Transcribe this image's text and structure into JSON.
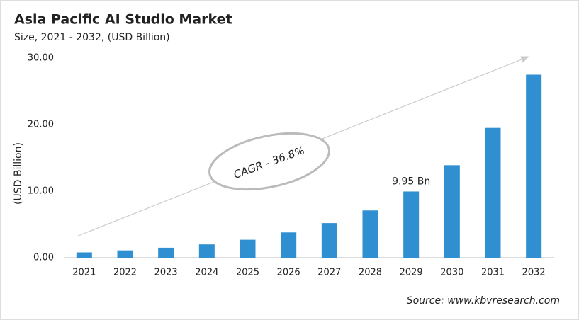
{
  "chart_data": {
    "type": "bar",
    "title": "Asia Pacific AI Studio Market",
    "subtitle": "Size, 2021 - 2032, (USD Billion)",
    "y_label": "(USD Billion)",
    "categories": [
      "2021",
      "2022",
      "2023",
      "2024",
      "2025",
      "2026",
      "2027",
      "2028",
      "2029",
      "2030",
      "2031",
      "2032"
    ],
    "values": [
      0.8,
      1.1,
      1.5,
      2.0,
      2.7,
      3.8,
      5.2,
      7.1,
      9.95,
      13.9,
      19.5,
      27.5
    ],
    "value_labels": [
      null,
      null,
      null,
      null,
      null,
      null,
      null,
      null,
      "9.95 Bn",
      null,
      null,
      null
    ],
    "color": "#2f8fd0",
    "ylim": [
      0,
      30
    ],
    "yticks": [
      {
        "value": 0,
        "label": "0.00"
      },
      {
        "value": 10,
        "label": "10.00"
      },
      {
        "value": 20,
        "label": "20.00"
      },
      {
        "value": 30,
        "label": "30.00"
      }
    ],
    "annotation": "CAGR - 36.8%",
    "source": "Source: www.kbvresearch.com"
  }
}
